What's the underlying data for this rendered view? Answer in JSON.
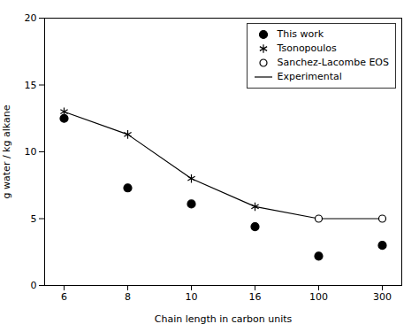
{
  "chart_data": {
    "type": "line",
    "xlabel": "Chain length in carbon units",
    "ylabel": "g water / kg alkane",
    "categories": [
      "6",
      "8",
      "10",
      "16",
      "100",
      "300"
    ],
    "series": [
      {
        "name": "This work",
        "type": "scatter",
        "marker": "filled circle",
        "color": "black",
        "values": [
          12.5,
          7.3,
          6.1,
          4.4,
          2.2,
          3.0
        ]
      },
      {
        "name": "Tsonopoulos",
        "type": "scatter",
        "marker": "asterisk",
        "color": "black",
        "values": [
          13.0,
          11.3,
          8.0,
          5.9,
          null,
          null
        ]
      },
      {
        "name": "Sanchez-Lacombe EOS",
        "type": "scatter",
        "marker": "open circle",
        "color": "black",
        "values": [
          null,
          null,
          null,
          null,
          5.0,
          5.0
        ]
      },
      {
        "name": "Experimental",
        "type": "line",
        "color": "black",
        "values": [
          13.0,
          11.3,
          8.0,
          5.9,
          5.0,
          5.0
        ]
      }
    ],
    "ylim": [
      0,
      20
    ],
    "yticks": [
      0,
      5,
      10,
      15,
      20
    ],
    "grid": false,
    "legend": "upper right"
  }
}
